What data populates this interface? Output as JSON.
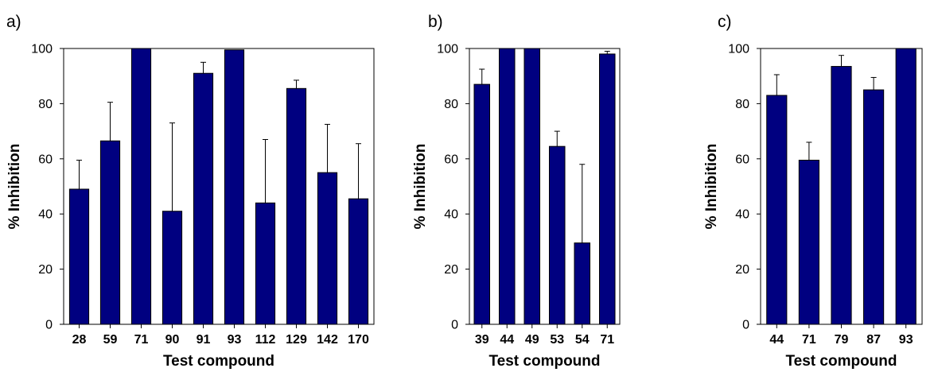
{
  "chart_data": [
    {
      "type": "bar",
      "panel_label": "a)",
      "categories": [
        "28",
        "59",
        "71",
        "90",
        "91",
        "93",
        "112",
        "129",
        "142",
        "170"
      ],
      "values": [
        49,
        66.5,
        100,
        41,
        91,
        99.5,
        44,
        85.5,
        55,
        45.5
      ],
      "error_upper": [
        59.5,
        80.5,
        100,
        73,
        95,
        99.5,
        67,
        88.5,
        72.5,
        65.5
      ],
      "xlabel": "Test compound",
      "ylabel": "% Inhibition",
      "ylim": [
        0,
        100
      ],
      "yticks": [
        0,
        20,
        40,
        60,
        80,
        100
      ],
      "grid": false,
      "bar_color": "#000080"
    },
    {
      "type": "bar",
      "panel_label": "b)",
      "categories": [
        "39",
        "44",
        "49",
        "53",
        "54",
        "71"
      ],
      "values": [
        87,
        100,
        100,
        64.5,
        29.5,
        98
      ],
      "error_upper": [
        92.5,
        100,
        100,
        70,
        58,
        99
      ],
      "xlabel": "Test compound",
      "ylabel": "% Inhibition",
      "ylim": [
        0,
        100
      ],
      "yticks": [
        0,
        20,
        40,
        60,
        80,
        100
      ],
      "grid": false,
      "bar_color": "#000080"
    },
    {
      "type": "bar",
      "panel_label": "c)",
      "categories": [
        "44",
        "71",
        "79",
        "87",
        "93"
      ],
      "values": [
        83,
        59.5,
        93.5,
        85,
        100
      ],
      "error_upper": [
        90.5,
        66,
        97.5,
        89.5,
        100
      ],
      "xlabel": "Test compound",
      "ylabel": "% Inhibition",
      "ylim": [
        0,
        100
      ],
      "yticks": [
        0,
        20,
        40,
        60,
        80,
        100
      ],
      "grid": false,
      "bar_color": "#000080"
    }
  ]
}
